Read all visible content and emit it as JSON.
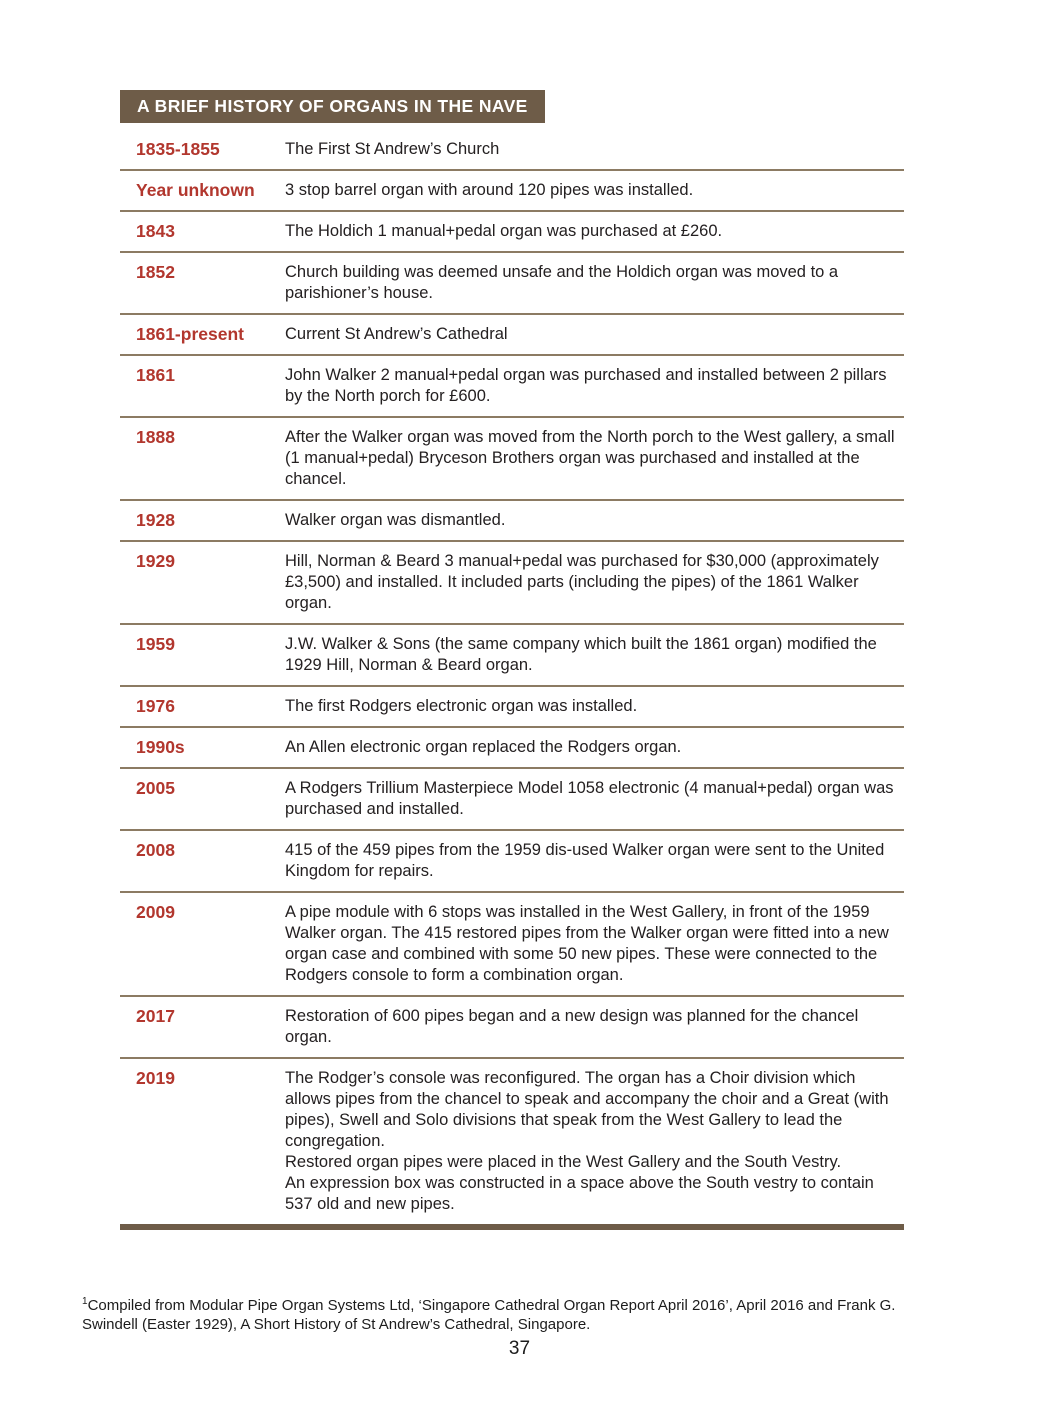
{
  "header": {
    "title": "A BRIEF HISTORY OF ORGANS IN THE NAVE"
  },
  "timeline": {
    "rows": [
      {
        "year": "1835-1855",
        "description": "The First St Andrew’s Church"
      },
      {
        "year": "Year unknown",
        "description": "3 stop barrel organ with around 120 pipes was installed."
      },
      {
        "year": "1843",
        "description": "The Holdich 1 manual+pedal organ was purchased at £260."
      },
      {
        "year": "1852",
        "description": "Church building was deemed unsafe and the Holdich organ was moved to a parishioner’s house."
      },
      {
        "year": "1861-present",
        "description": "Current St Andrew’s Cathedral"
      },
      {
        "year": "1861",
        "description": "John Walker 2 manual+pedal organ was purchased and installed between 2 pillars by the North porch for £600."
      },
      {
        "year": "1888",
        "description": "After the Walker organ was moved from the North porch to the West gallery, a small (1 manual+pedal) Bryceson Brothers organ was purchased and installed at the chancel."
      },
      {
        "year": "1928",
        "description": "Walker organ was dismantled."
      },
      {
        "year": "1929",
        "description": "Hill, Norman & Beard 3 manual+pedal was purchased for $30,000 (approximately £3,500) and installed. It included parts (including the pipes) of the 1861 Walker organ."
      },
      {
        "year": "1959",
        "description": "J.W. Walker & Sons (the same company which built the 1861 organ) modified the 1929 Hill, Norman & Beard organ."
      },
      {
        "year": "1976",
        "description": "The first Rodgers electronic organ was installed."
      },
      {
        "year": "1990s",
        "description": "An Allen electronic organ replaced the Rodgers organ."
      },
      {
        "year": "2005",
        "description": "A Rodgers Trillium Masterpiece Model 1058 electronic (4 manual+pedal) organ was purchased and installed."
      },
      {
        "year": "2008",
        "description": "415 of the 459 pipes from the 1959 dis-used Walker organ were sent to the United Kingdom for repairs."
      },
      {
        "year": "2009",
        "description": "A pipe module with 6 stops was installed in the West Gallery, in front of the 1959 Walker organ. The 415 restored pipes from the Walker organ were fitted into a new organ case and combined with some 50 new pipes. These were connected to the Rodgers console to form a combination organ."
      },
      {
        "year": "2017",
        "description": "Restoration of 600 pipes began and a new design was planned for the chancel organ."
      },
      {
        "year": "2019",
        "description": "The Rodger’s console was reconfigured. The organ has a Choir division which allows pipes from the chancel to speak and accompany the choir and a Great (with pipes), Swell and Solo divisions that speak from the West Gallery to lead the congregation.\nRestored organ pipes were placed in the West Gallery and the South Vestry.\nAn expression box was constructed in a space above the South vestry to contain 537 old and new pipes."
      }
    ]
  },
  "footnote": {
    "marker": "1",
    "text": "Compiled from Modular Pipe Organ Systems Ltd, ‘Singapore Cathedral Organ Report April 2016’, April 2016 and Frank G. Swindell (Easter 1929), A Short History of St Andrew’s Cathedral, Singapore."
  },
  "page_number": "37",
  "colors": {
    "bar_brown": "#6e5c48",
    "divider_brown": "#8c7b63",
    "year_red": "#b2372e",
    "body_text": "#242021"
  }
}
